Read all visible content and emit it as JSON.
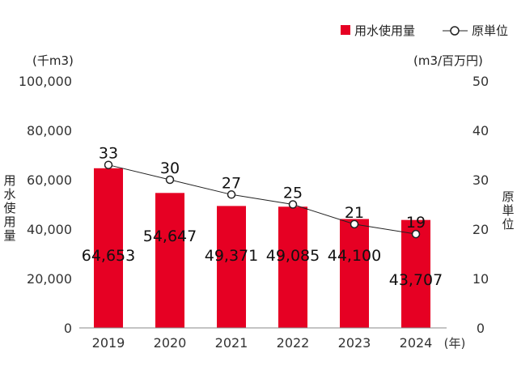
{
  "chart_data": {
    "type": "bar+line",
    "categories": [
      "2019",
      "2020",
      "2021",
      "2022",
      "2023",
      "2024"
    ],
    "x_unit": "(年)",
    "series": [
      {
        "name": "用水使用量",
        "type": "bar",
        "axis": "left",
        "color": "#e60023",
        "values": [
          64653,
          54647,
          49371,
          49085,
          44100,
          43707
        ],
        "labels": [
          "64,653",
          "54,647",
          "49,371",
          "49,085",
          "44,100",
          "43,707"
        ]
      },
      {
        "name": "原単位",
        "type": "line",
        "axis": "right",
        "color": "#222222",
        "values": [
          33,
          30,
          27,
          25,
          21,
          19
        ],
        "labels": [
          "33",
          "30",
          "27",
          "25",
          "21",
          "19"
        ]
      }
    ],
    "left_axis": {
      "label": "用水使用量",
      "unit": "(千m3)",
      "ylim": [
        0,
        100000
      ],
      "ticks": [
        "0",
        "20,000",
        "40,000",
        "60,000",
        "80,000",
        "100,000"
      ]
    },
    "right_axis": {
      "label": "原単位",
      "unit": "(m3/百万円)",
      "ylim": [
        0,
        50
      ],
      "ticks": [
        "0",
        "10",
        "20",
        "30",
        "40",
        "50"
      ]
    },
    "legend": "top-right",
    "grid": false
  }
}
